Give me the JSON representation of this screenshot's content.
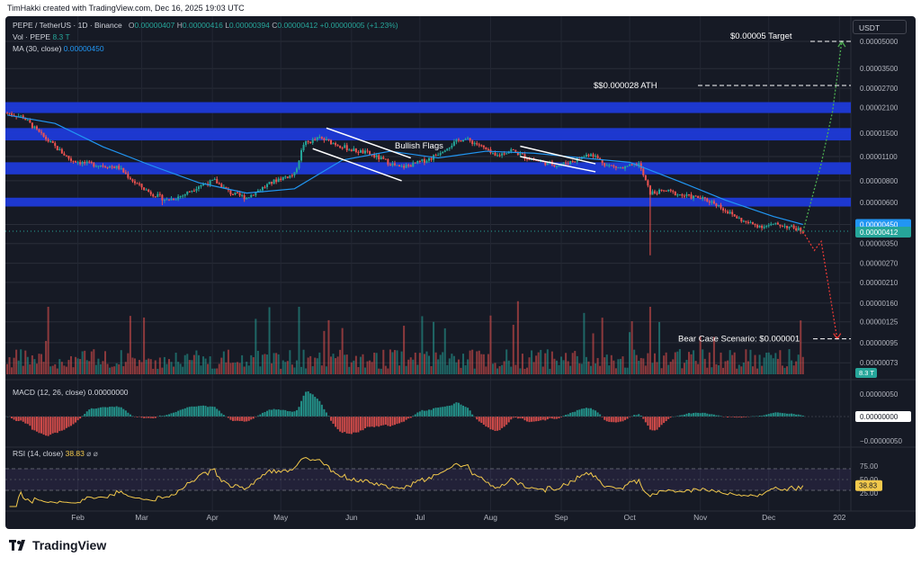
{
  "header": {
    "creator": "TimHakki created with TradingView.com, Dec 16, 2025 19:03 UTC"
  },
  "legend": {
    "symbol": "PEPE / TetherUS · 1D · Binance",
    "ohlc": {
      "o_label": "O",
      "o": "0.00000407",
      "h_label": "H",
      "h": "0.00000416",
      "l_label": "L",
      "l": "0.00000394",
      "c_label": "C",
      "c": "0.00000412",
      "change": "+0.00000005 (+1.23%)"
    },
    "vol_label": "Vol · PEPE",
    "vol_value": "8.3 T",
    "ma_label": "MA (30, close)",
    "ma_value": "0.00000450"
  },
  "currency_button": "USDT",
  "macd_legend": {
    "label": "MACD (12, 26, close)",
    "value": "0.00000000"
  },
  "rsi_legend": {
    "label": "RSI (14, close)",
    "value": "38.83",
    "icons": "⌀ ⌀"
  },
  "chart_data": [
    {
      "type": "candlestick",
      "title": "PEPE / TetherUS · 1D · Binance",
      "ylabel": "USDT",
      "y_scale": "log",
      "y_ticks": [
        "0.00005000",
        "0.00003500",
        "0.00002700",
        "0.00002100",
        "0.00001500",
        "0.00001100",
        "0.00000800",
        "0.00000600",
        "0.00000450",
        "0.00000350",
        "0.00000270",
        "0.00000210",
        "0.00000160",
        "0.00000125",
        "0.00000095",
        "0.00000073"
      ],
      "x_ticks": [
        "Feb",
        "Mar",
        "Apr",
        "May",
        "Jun",
        "Jul",
        "Aug",
        "Sep",
        "Oct",
        "Nov",
        "Dec",
        "202"
      ],
      "series_close": [
        [
          "2025-01-01",
          1.95e-05
        ],
        [
          "2025-01-08",
          1.85e-05
        ],
        [
          "2025-01-15",
          1.5e-05
        ],
        [
          "2025-01-22",
          1.25e-05
        ],
        [
          "2025-01-29",
          1.05e-05
        ],
        [
          "2025-02-05",
          1e-05
        ],
        [
          "2025-02-12",
          9.8e-06
        ],
        [
          "2025-02-19",
          9.5e-06
        ],
        [
          "2025-02-26",
          7.8e-06
        ],
        [
          "2025-03-05",
          6.8e-06
        ],
        [
          "2025-03-12",
          6.2e-06
        ],
        [
          "2025-03-19",
          6.6e-06
        ],
        [
          "2025-03-26",
          7.5e-06
        ],
        [
          "2025-04-02",
          8e-06
        ],
        [
          "2025-04-09",
          6.8e-06
        ],
        [
          "2025-04-16",
          6.4e-06
        ],
        [
          "2025-04-23",
          7.3e-06
        ],
        [
          "2025-04-30",
          8.2e-06
        ],
        [
          "2025-05-07",
          8.7e-06
        ],
        [
          "2025-05-11",
          1.3e-05
        ],
        [
          "2025-05-18",
          1.4e-05
        ],
        [
          "2025-05-25",
          1.3e-05
        ],
        [
          "2025-06-01",
          1.2e-05
        ],
        [
          "2025-06-08",
          1.15e-05
        ],
        [
          "2025-06-15",
          1.05e-05
        ],
        [
          "2025-06-22",
          9.5e-06
        ],
        [
          "2025-06-29",
          1e-05
        ],
        [
          "2025-07-06",
          1.08e-05
        ],
        [
          "2025-07-13",
          1.25e-05
        ],
        [
          "2025-07-20",
          1.4e-05
        ],
        [
          "2025-07-27",
          1.28e-05
        ],
        [
          "2025-08-03",
          1.1e-05
        ],
        [
          "2025-08-10",
          1.2e-05
        ],
        [
          "2025-08-17",
          1.08e-05
        ],
        [
          "2025-08-24",
          1.02e-05
        ],
        [
          "2025-08-31",
          9.8e-06
        ],
        [
          "2025-09-07",
          1.05e-05
        ],
        [
          "2025-09-14",
          1.15e-05
        ],
        [
          "2025-09-21",
          9.8e-06
        ],
        [
          "2025-09-28",
          9.4e-06
        ],
        [
          "2025-10-05",
          1e-05
        ],
        [
          "2025-10-10",
          6.8e-06
        ],
        [
          "2025-10-17",
          7e-06
        ],
        [
          "2025-10-24",
          6.6e-06
        ],
        [
          "2025-10-31",
          6.4e-06
        ],
        [
          "2025-11-07",
          6e-06
        ],
        [
          "2025-11-14",
          5.2e-06
        ],
        [
          "2025-11-21",
          4.6e-06
        ],
        [
          "2025-11-28",
          4.4e-06
        ],
        [
          "2025-12-05",
          4.5e-06
        ],
        [
          "2025-12-12",
          4.3e-06
        ],
        [
          "2025-12-16",
          4.12e-06
        ]
      ],
      "ma_series": [
        [
          "2025-01-01",
          1.9e-05
        ],
        [
          "2025-01-22",
          1.7e-05
        ],
        [
          "2025-02-12",
          1.25e-05
        ],
        [
          "2025-03-05",
          9.8e-06
        ],
        [
          "2025-03-26",
          7.8e-06
        ],
        [
          "2025-04-16",
          6.8e-06
        ],
        [
          "2025-05-07",
          7.2e-06
        ],
        [
          "2025-05-28",
          1.05e-05
        ],
        [
          "2025-06-18",
          1.18e-05
        ],
        [
          "2025-07-09",
          1.08e-05
        ],
        [
          "2025-07-30",
          1.18e-05
        ],
        [
          "2025-08-20",
          1.15e-05
        ],
        [
          "2025-09-10",
          1.08e-05
        ],
        [
          "2025-10-01",
          1.02e-05
        ],
        [
          "2025-10-22",
          8e-06
        ],
        [
          "2025-11-12",
          6.2e-06
        ],
        [
          "2025-12-03",
          5e-06
        ],
        [
          "2025-12-16",
          4.5e-06
        ]
      ],
      "current_price": "0.00000412",
      "ma_value": "0.00000450",
      "support_resistance_zones": [
        [
          1.95e-05,
          2.25e-05
        ],
        [
          1.36e-05,
          1.6e-05
        ],
        [
          8.7e-06,
          1.02e-05
        ],
        [
          5.7e-06,
          6.4e-06
        ]
      ],
      "annotations": [
        {
          "text": "$0.00005 Target",
          "price": 5e-05
        },
        {
          "text": "$$0.000028 ATH",
          "price": 2.8e-05
        },
        {
          "text": "Bullish Flags"
        },
        {
          "text": "Bear Case Scenario: $0.000001",
          "price": 1e-06
        }
      ],
      "projections": {
        "bull": [
          [
            "2025-12-16",
            4.1e-06
          ],
          [
            "2025-12-24",
            1e-05
          ],
          [
            "2025-12-29",
            2e-05
          ],
          [
            "2026-01-02",
            5e-05
          ]
        ],
        "bear": [
          [
            "2025-12-16",
            4.1e-06
          ],
          [
            "2025-12-21",
            3.2e-06
          ],
          [
            "2025-12-24",
            3.6e-06
          ],
          [
            "2025-12-31",
            1e-06
          ]
        ]
      },
      "colors": {
        "up": "#26a69a",
        "down": "#ef5350",
        "ma": "#2196f3",
        "zone": "#1e3ad8",
        "bull_path": "#4caf50",
        "bear_path": "#e53935"
      }
    },
    {
      "type": "bar",
      "title": "Vol · PEPE",
      "last_value": "8.3 T"
    },
    {
      "type": "bar",
      "title": "MACD (12, 26, close)",
      "y_ticks": [
        "0.00000050",
        "0.00000000",
        "−0.00000050"
      ],
      "last_value": "0.00000000"
    },
    {
      "type": "line",
      "title": "RSI (14, close)",
      "y_ticks": [
        "75.00",
        "50.00",
        "25.00"
      ],
      "band": [
        30,
        70
      ],
      "last_value": "38.83"
    }
  ],
  "branding": {
    "logo_text": "TradingView"
  }
}
